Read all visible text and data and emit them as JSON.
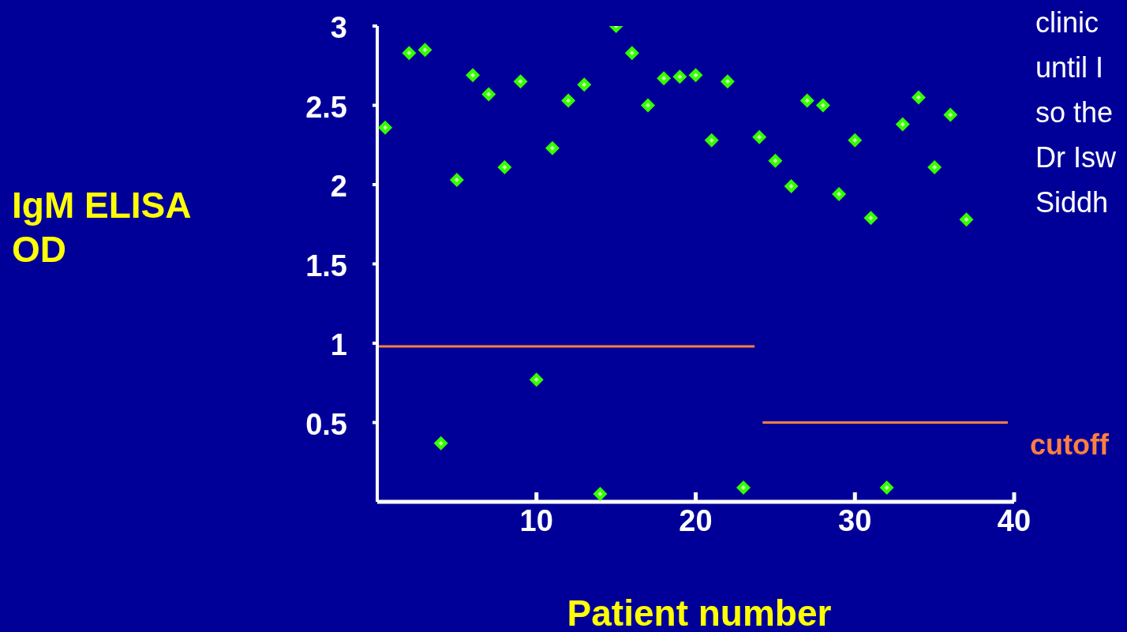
{
  "chart_data": {
    "type": "scatter",
    "xlabel": "Patient number",
    "ylabel": "IgM ELISA OD",
    "xlim": [
      0,
      40
    ],
    "ylim": [
      0,
      3
    ],
    "xticks": [
      10,
      20,
      30,
      40
    ],
    "yticks": [
      0.5,
      1,
      1.5,
      2,
      2.5,
      3
    ],
    "marker": "diamond",
    "annotations": [
      "clinic",
      "until I",
      "so the",
      "Dr Isw",
      "Siddh"
    ],
    "series": [
      {
        "color": "#33ff00",
        "x": [
          0.5,
          2,
          3,
          4,
          5,
          6,
          7,
          8,
          9,
          10,
          11,
          12,
          13,
          14,
          15,
          16,
          17,
          18,
          19,
          20,
          21,
          22,
          23,
          24,
          25,
          26,
          27,
          28,
          29,
          30,
          31,
          32,
          33,
          34,
          35,
          36,
          37
        ],
        "values": [
          2.36,
          2.83,
          2.85,
          0.37,
          2.03,
          2.69,
          2.57,
          2.11,
          2.65,
          0.77,
          2.23,
          2.53,
          2.63,
          0.05,
          3.0,
          2.83,
          2.5,
          2.67,
          2.68,
          2.69,
          2.28,
          2.65,
          0.09,
          2.3,
          2.15,
          1.99,
          2.53,
          2.5,
          1.94,
          2.28,
          1.79,
          0.09,
          2.38,
          2.55,
          2.11,
          2.44,
          1.78
        ]
      },
      {
        "type": "line",
        "marker": "none",
        "color": "#ff7f3f",
        "x": [
          0,
          23.7
        ],
        "values": [
          0.98,
          0.98
        ]
      },
      {
        "type": "line",
        "marker": "none",
        "color": "#ff7f3f",
        "name": "cutoff",
        "x": [
          24.2,
          39.6
        ],
        "values": [
          0.5,
          0.5
        ]
      }
    ]
  }
}
